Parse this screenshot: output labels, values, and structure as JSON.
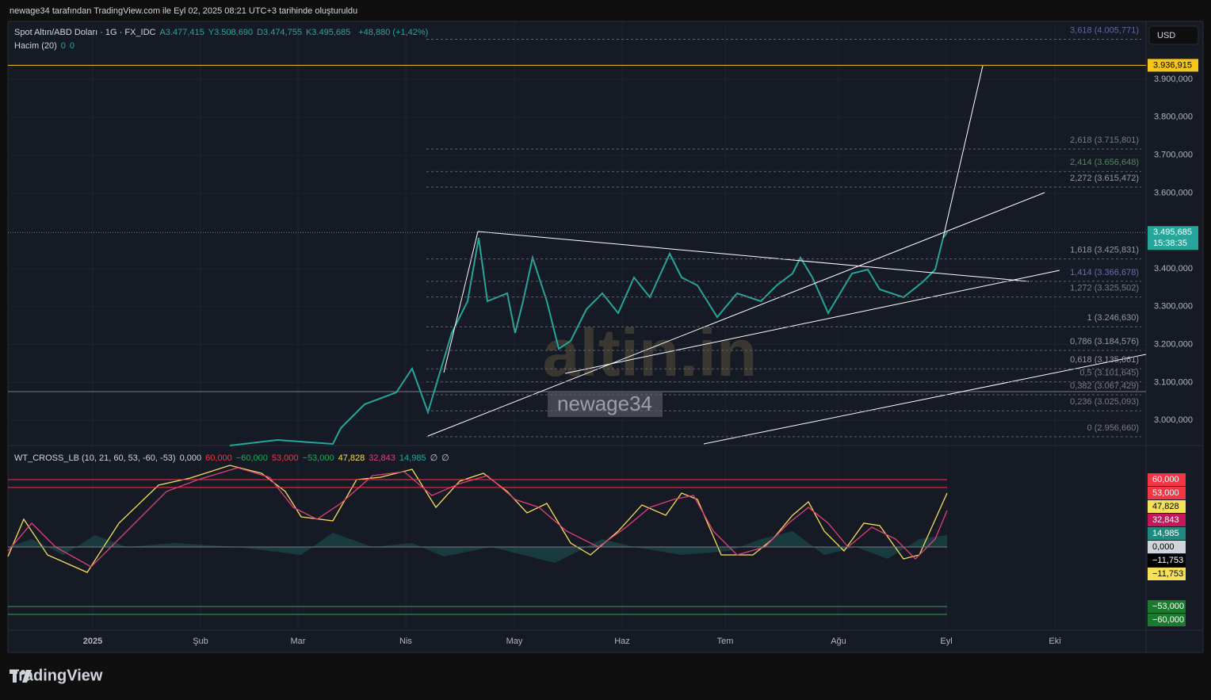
{
  "header": {
    "caption": "newage34 tarafından TradingView.com ile Eyl 02, 2025 08:21 UTC+3 tarihinde oluşturuldu"
  },
  "legend": {
    "symbol": "Spot Altın/ABD Doları · 1G · FX_IDC",
    "ohlc": [
      "A3.477,415",
      "Y3.508,690",
      "D3.474,755",
      "K3.495,685"
    ],
    "change": "+48,880 (+1,42%)",
    "volume": {
      "name": "Hacim (20)",
      "values": [
        "0",
        "0"
      ]
    }
  },
  "price_axis": {
    "currency": "USD",
    "ticks": [
      {
        "value": 3900,
        "label": "3.900,000"
      },
      {
        "value": 3800,
        "label": "3.800,000"
      },
      {
        "value": 3700,
        "label": "3.700,000"
      },
      {
        "value": 3600,
        "label": "3.600,000"
      },
      {
        "value": 3400,
        "label": "3.400,000"
      },
      {
        "value": 3300,
        "label": "3.300,000"
      },
      {
        "value": 3200,
        "label": "3.200,000"
      },
      {
        "value": 3100,
        "label": "3.100,000"
      },
      {
        "value": 3000,
        "label": "3.000,000"
      }
    ],
    "marker": {
      "value": 3936.915,
      "label": "3.936,915",
      "color": "#f5c518"
    },
    "last": {
      "value": 3495.685,
      "label": "3.495,685",
      "countdown": "15:38:35",
      "color": "#26a69a"
    }
  },
  "fib_levels": [
    {
      "value": 4005.771,
      "label": "3,618 (4.005,771)",
      "color": "#5d6aa0"
    },
    {
      "value": 3715.801,
      "label": "2,618 (3.715,801)",
      "color": "#787b86"
    },
    {
      "value": 3656.648,
      "label": "2,414 (3.656,648)",
      "color": "#4e8a5c"
    },
    {
      "value": 3615.472,
      "label": "2,272 (3.615,472)",
      "color": "#9598a1"
    },
    {
      "value": 3425.831,
      "label": "1,618 (3.425,831)",
      "color": "#9598a1"
    },
    {
      "value": 3366.678,
      "label": "1,414 (3.366,678)",
      "color": "#6a6ea8"
    },
    {
      "value": 3325.502,
      "label": "1,272 (3.325,502)",
      "color": "#787b86"
    },
    {
      "value": 3246.63,
      "label": "1 (3.246,630)",
      "color": "#9598a1"
    },
    {
      "value": 3184.576,
      "label": "0,786 (3.184,576)",
      "color": "#9598a1"
    },
    {
      "value": 3135.861,
      "label": "0,618 (3.135,861)",
      "color": "#9598a1"
    },
    {
      "value": 3101.645,
      "label": "0,5 (3.101,645)",
      "color": "#787b86"
    },
    {
      "value": 3067.429,
      "label": "0,382 (3.067,429)",
      "color": "#787b86"
    },
    {
      "value": 3025.093,
      "label": "0,236 (3.025,093)",
      "color": "#787b86"
    },
    {
      "value": 2956.66,
      "label": "0 (2.956,660)",
      "color": "#787b86"
    }
  ],
  "watermarks": {
    "logo": "altin.in",
    "user": "newage34"
  },
  "indicator": {
    "name": "WT_CROSS_LB (10, 21, 60, 53, -60, -53)",
    "values": [
      {
        "label": "0,000",
        "color": "#d1d4dc"
      },
      {
        "label": "60,000",
        "color": "#f23645"
      },
      {
        "label": "−60,000",
        "color": "#26a65a"
      },
      {
        "label": "53,000",
        "color": "#f23645"
      },
      {
        "label": "−53,000",
        "color": "#26a65a"
      },
      {
        "label": "47,828",
        "color": "#f5e05a"
      },
      {
        "label": "32,843",
        "color": "#e0407a"
      },
      {
        "label": "14,985",
        "color": "#26a69a"
      },
      {
        "label": "∅",
        "color": "#d1d4dc"
      },
      {
        "label": "∅",
        "color": "#d1d4dc"
      }
    ],
    "badges": [
      {
        "value": 60,
        "label": "60,000",
        "bg": "#f23645",
        "fg": "#ffffff"
      },
      {
        "value": 53,
        "label": "53,000",
        "bg": "#f23645",
        "fg": "#ffffff"
      },
      {
        "value": 47.828,
        "label": "47,828",
        "bg": "#f5e05a",
        "fg": "#000000"
      },
      {
        "value": 32.843,
        "label": "32,843",
        "bg": "#c2185b",
        "fg": "#ffffff"
      },
      {
        "value": 14.985,
        "label": "14,985",
        "bg": "#1f8a7e",
        "fg": "#ffffff"
      },
      {
        "value": 0,
        "label": "0,000",
        "bg": "#d1d4dc",
        "fg": "#000000"
      },
      {
        "value": -11.753,
        "label": "−11,753",
        "bg": "#000000",
        "fg": "#ffffff"
      },
      {
        "value": -11.753,
        "label": "−11,753",
        "bg": "#f5e05a",
        "fg": "#000000"
      },
      {
        "value": -53,
        "label": "−53,000",
        "bg": "#1b7a2e",
        "fg": "#ffffff"
      },
      {
        "value": -60,
        "label": "−60,000",
        "bg": "#1b7a2e",
        "fg": "#ffffff"
      }
    ]
  },
  "time_axis": {
    "labels": [
      "2025",
      "Şub",
      "Mar",
      "Nis",
      "May",
      "Haz",
      "Tem",
      "Ağu",
      "Eyl",
      "Eki"
    ]
  },
  "footer": {
    "brand": "TradingView"
  }
}
